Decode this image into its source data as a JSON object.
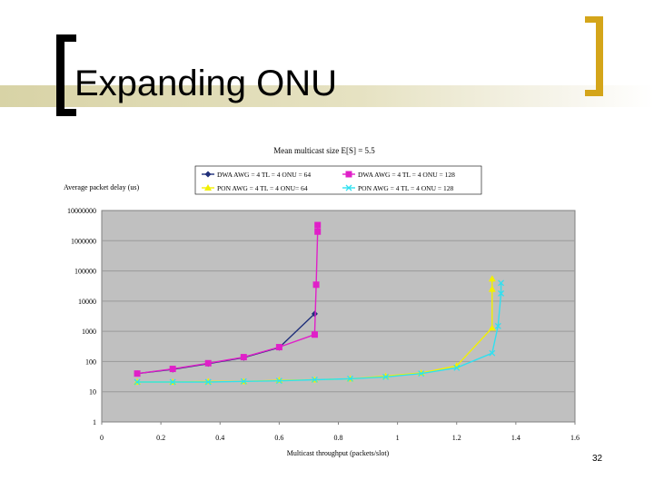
{
  "slide": {
    "title": "Expanding ONU",
    "page_number": "32"
  },
  "chart_data": {
    "type": "line",
    "title": "Mean multicast size E[S] = 5.5",
    "xlabel": "Multicast throughput (packets/slot)",
    "ylabel": "Average packet delay (us)",
    "xlim": [
      0,
      1.6
    ],
    "ylim": [
      1,
      10000000
    ],
    "yscale": "log",
    "x_ticks": [
      "0",
      "0.2",
      "0.4",
      "0.6",
      "0.8",
      "1",
      "1.2",
      "1.4",
      "1.6"
    ],
    "y_ticks": [
      "1",
      "10",
      "100",
      "1000",
      "10000",
      "100000",
      "1000000",
      "10000000"
    ],
    "grid": true,
    "plot_background": "#c0c0c0",
    "legend_position": "top",
    "series": [
      {
        "name": "DWA AWG = 4 TL = 4 ONU = 64",
        "color": "#1f2f7a",
        "marker": "diamond",
        "points": [
          [
            0.12,
            40
          ],
          [
            0.24,
            55
          ],
          [
            0.36,
            85
          ],
          [
            0.48,
            135
          ],
          [
            0.6,
            290
          ],
          [
            0.72,
            3800
          ]
        ]
      },
      {
        "name": "DWA AWG = 4 TL = 4 ONU = 128",
        "color": "#e020c8",
        "marker": "square",
        "points": [
          [
            0.12,
            40
          ],
          [
            0.24,
            57
          ],
          [
            0.36,
            88
          ],
          [
            0.48,
            140
          ],
          [
            0.6,
            300
          ],
          [
            0.72,
            780
          ],
          [
            0.725,
            35000
          ],
          [
            0.73,
            2000000
          ],
          [
            0.73,
            3300000
          ]
        ]
      },
      {
        "name": "PON AWG = 4 TL = 4 ONU= 64",
        "color": "#f2f000",
        "marker": "triangle",
        "points": [
          [
            0.12,
            21
          ],
          [
            0.24,
            21
          ],
          [
            0.36,
            22
          ],
          [
            0.48,
            22
          ],
          [
            0.6,
            24
          ],
          [
            0.72,
            25
          ],
          [
            0.84,
            27
          ],
          [
            0.96,
            33
          ],
          [
            1.08,
            42
          ],
          [
            1.2,
            72
          ],
          [
            1.32,
            1300
          ],
          [
            1.32,
            25000
          ],
          [
            1.32,
            55000
          ]
        ]
      },
      {
        "name": "PON AWG = 4 TL = 4 ONU = 128",
        "color": "#30e0f0",
        "marker": "x",
        "points": [
          [
            0.12,
            21
          ],
          [
            0.24,
            21
          ],
          [
            0.36,
            21
          ],
          [
            0.48,
            22
          ],
          [
            0.6,
            23
          ],
          [
            0.72,
            25
          ],
          [
            0.84,
            27
          ],
          [
            0.96,
            31
          ],
          [
            1.08,
            40
          ],
          [
            1.2,
            62
          ],
          [
            1.32,
            190
          ],
          [
            1.34,
            1500
          ],
          [
            1.35,
            18000
          ],
          [
            1.35,
            40000
          ]
        ]
      }
    ]
  }
}
